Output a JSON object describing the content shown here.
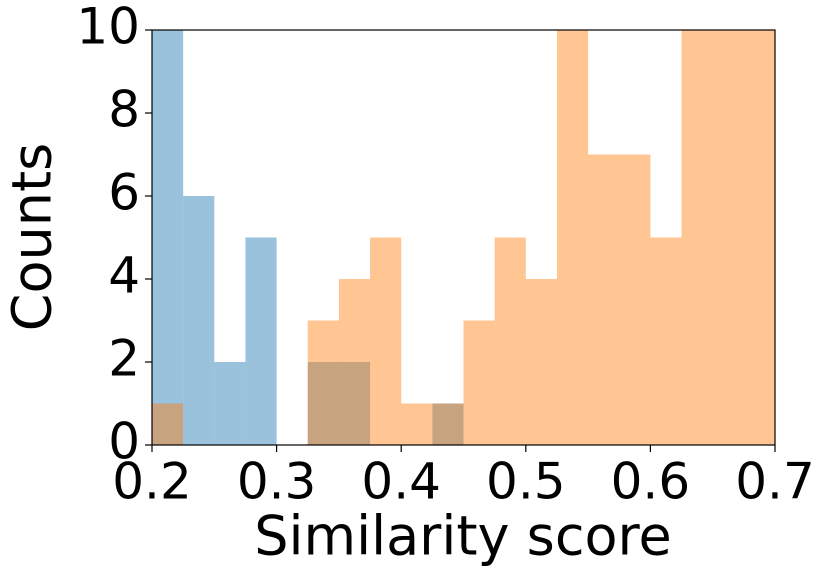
{
  "chart_data": {
    "type": "histogram",
    "xlabel": "Similarity score",
    "ylabel": "Counts",
    "bins": [
      0.2,
      0.225,
      0.25,
      0.275,
      0.3,
      0.325,
      0.35,
      0.375,
      0.4,
      0.425,
      0.45,
      0.475,
      0.5,
      0.525,
      0.55,
      0.575,
      0.6,
      0.625,
      0.65,
      0.675,
      0.7
    ],
    "series": [
      {
        "color": "#1f77b4",
        "opacity": 0.45,
        "values": [
          10,
          6,
          2,
          5,
          0,
          2,
          2,
          0,
          0,
          1,
          0,
          0,
          0,
          0,
          0,
          0,
          0,
          0,
          0,
          0
        ]
      },
      {
        "color": "#ff7f0e",
        "opacity": 0.45,
        "values": [
          1,
          0,
          0,
          0,
          0,
          3,
          4,
          5,
          1,
          1,
          3,
          5,
          4,
          10,
          7,
          7,
          5,
          10,
          10,
          10
        ]
      }
    ],
    "xlim": [
      0.2,
      0.7
    ],
    "xticks": [
      0.2,
      0.3,
      0.4,
      0.5,
      0.6,
      0.7
    ],
    "ylim": [
      0,
      10
    ],
    "yticks": [
      0,
      2,
      4,
      6,
      8,
      10
    ],
    "grid": false
  }
}
